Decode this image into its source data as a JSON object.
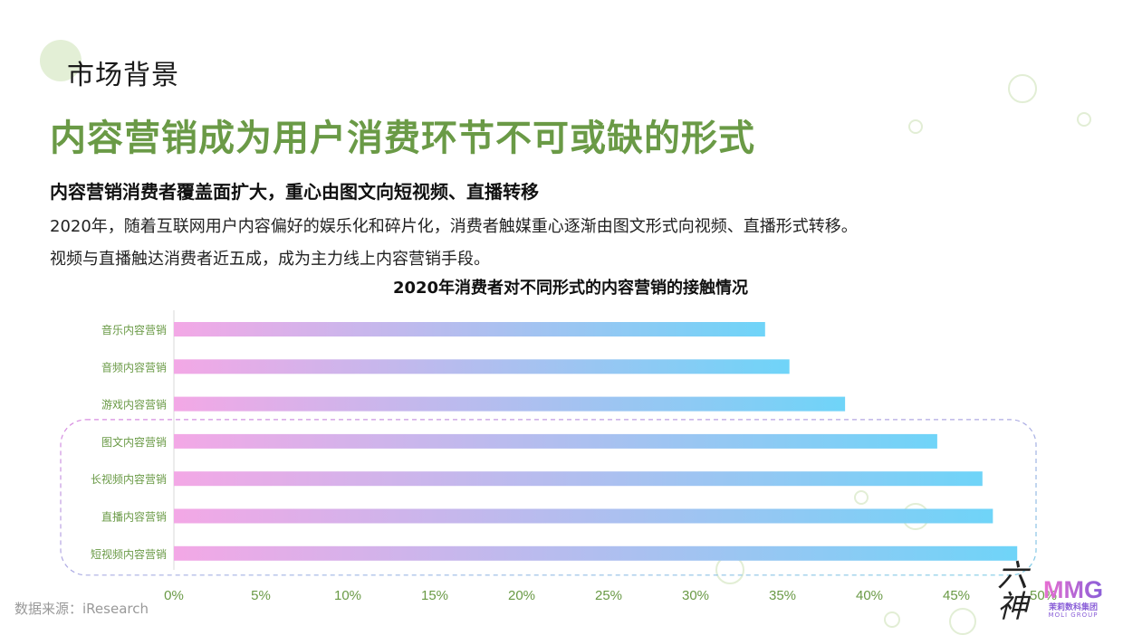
{
  "header": {
    "section_title": "市场背景",
    "headline": "内容营销成为用户消费环节不可或缺的形式"
  },
  "content": {
    "subheadline": "内容营销消费者覆盖面扩大，重心由图文向短视频、直播转移",
    "lines": [
      "2020年，随着互联网用户内容偏好的娱乐化和碎片化，消费者触媒重心逐渐由图文形式向视频、直播形式转移。",
      "视频与直播触达消费者近五成，成为主力线上内容营销手段。"
    ]
  },
  "chart_data": {
    "type": "bar",
    "orientation": "horizontal",
    "title": "2020年消费者对不同形式的内容营销的接触情况",
    "categories": [
      "音乐内容营销",
      "音频内容营销",
      "游戏内容营销",
      "图文内容营销",
      "长视频内容营销",
      "直播内容营销",
      "短视频内容营销"
    ],
    "values": [
      0.34,
      0.354,
      0.386,
      0.439,
      0.465,
      0.471,
      0.485
    ],
    "xticks": [
      "0%",
      "5%",
      "10%",
      "15%",
      "20%",
      "25%",
      "30%",
      "35%",
      "40%",
      "45%",
      "50%"
    ],
    "xlim": [
      0,
      0.5
    ],
    "highlighted_categories": [
      "图文内容营销",
      "长视频内容营销",
      "直播内容营销",
      "短视频内容营销"
    ],
    "bar_gradient": [
      "#f3a8e6",
      "#6fd4f8"
    ],
    "tick_color": "#6a9a46",
    "label_color": "#6a9a46"
  },
  "footer": {
    "source": "数据来源：iResearch",
    "logo_calligraphy": "六神",
    "logo_text": "MMG",
    "logo_sub": "茉莉数科集团",
    "logo_sub_en": "MOLI GROUP"
  }
}
